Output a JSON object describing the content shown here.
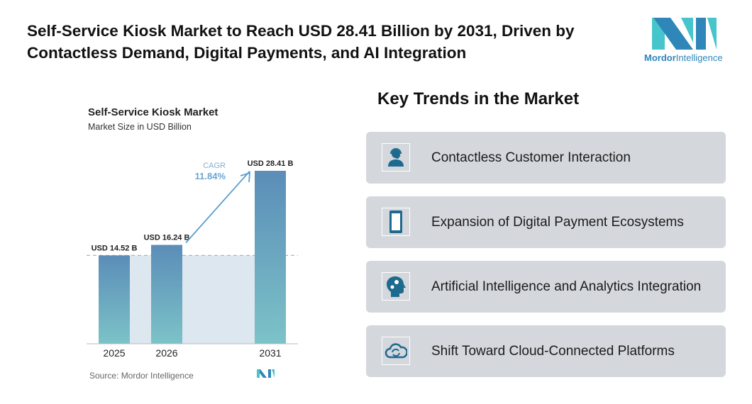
{
  "header": {
    "title": "Self-Service Kiosk Market to Reach USD 28.41 Billion by 2031, Driven by Contactless Demand, Digital Payments, and AI Integration",
    "logo_text_bold": "Mordor",
    "logo_text": "Intelligence"
  },
  "chart_data": {
    "type": "bar",
    "title": "Self-Service Kiosk Market",
    "subtitle": "Market Size in USD Billion",
    "categories": [
      "2025",
      "2026",
      "2031"
    ],
    "values": [
      14.52,
      16.24,
      28.41
    ],
    "data_labels": [
      "USD 14.52 B",
      "USD 16.24 B",
      "USD 28.41 B"
    ],
    "annotation": {
      "label": "CAGR",
      "value": "11.84%"
    },
    "source": "Source: Mordor Intelligence",
    "bar_color_top": "#5b8db8",
    "bar_color_bottom": "#7cc3c8",
    "accent": "#5b9fcf"
  },
  "trends": {
    "title": "Key Trends in the Market",
    "items": [
      {
        "label": "Contactless Customer Interaction",
        "icon": "headset-user-icon"
      },
      {
        "label": "Expansion of Digital Payment Ecosystems",
        "icon": "smartphone-icon"
      },
      {
        "label": "Artificial Intelligence and Analytics Integration",
        "icon": "ai-head-gears-icon"
      },
      {
        "label": "Shift Toward Cloud-Connected Platforms",
        "icon": "cloud-sync-icon"
      }
    ]
  }
}
